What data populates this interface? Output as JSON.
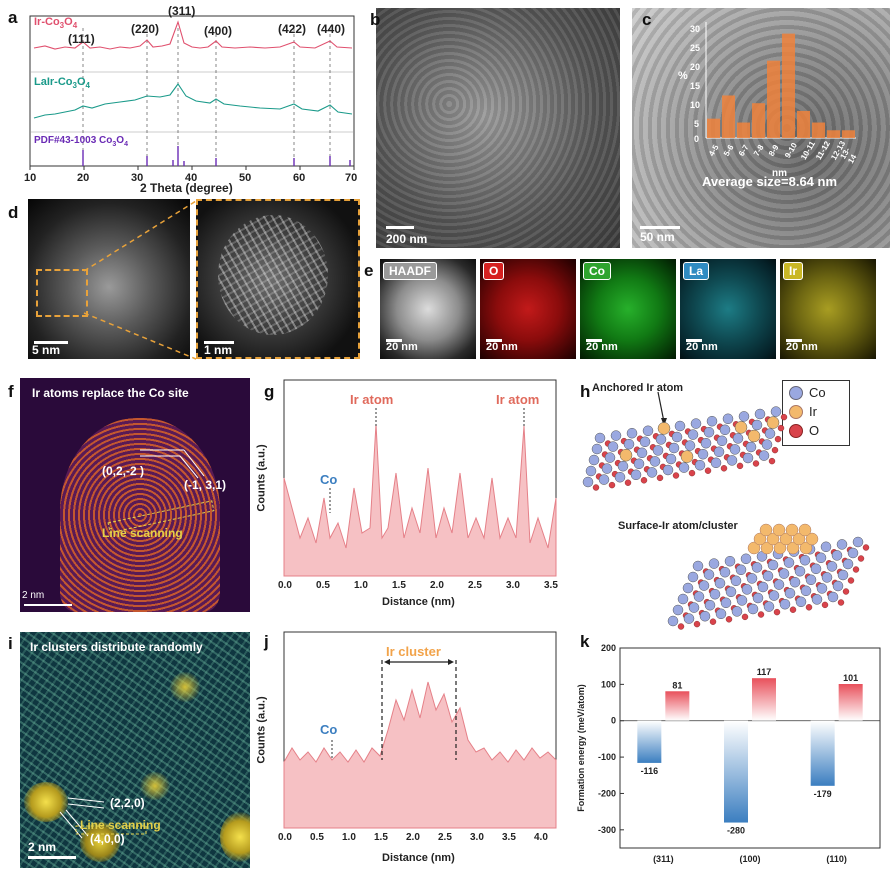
{
  "panels": {
    "a": {
      "label": "a",
      "series_top": "Ir-Co",
      "series_top_sub3": "3",
      "series_top_o": "O",
      "series_top_sub4": "4",
      "series_mid": "LaIr-Co",
      "series_mid_sub3": "3",
      "series_mid_o": "O",
      "series_mid_sub4": "4",
      "series_ref": "PDF#43-1003 Co",
      "series_ref_sub3": "3",
      "series_ref_o": "O",
      "series_ref_sub4": "4",
      "peaks": [
        "(111)",
        "(220)",
        "(311)",
        "(400)",
        "(422)",
        "(440)"
      ],
      "xlabel": "2 Theta (degree)",
      "xticks": [
        "10",
        "20",
        "30",
        "40",
        "50",
        "60",
        "70"
      ],
      "colors": {
        "top": "#e0506e",
        "mid": "#1a9a8a",
        "ref": "#6a2bb5"
      }
    },
    "b": {
      "label": "b",
      "scale": "200 nm"
    },
    "c": {
      "label": "c",
      "scale": "50 nm",
      "inset_ylabel": "%",
      "inset_xlabel": "nm",
      "inset_yticks": [
        "0",
        "5",
        "10",
        "15",
        "20",
        "25",
        "30"
      ],
      "caption": "Average size=8.64 nm",
      "bins": [
        "4-5",
        "5-6",
        "6-7",
        "7-8",
        "8-9",
        "9-10",
        "10-11",
        "11-12",
        "12-13",
        "13-14"
      ]
    },
    "d": {
      "label": "d",
      "scale_left": "5 nm",
      "scale_right": "1 nm"
    },
    "e": {
      "label": "e",
      "maps": [
        {
          "tag": "HAADF",
          "scale": "20 nm"
        },
        {
          "tag": "O",
          "scale": "20 nm"
        },
        {
          "tag": "Co",
          "scale": "20 nm"
        },
        {
          "tag": "La",
          "scale": "20 nm"
        },
        {
          "tag": "Ir",
          "scale": "20 nm"
        }
      ]
    },
    "f": {
      "label": "f",
      "title": "Ir atoms replace the Co site",
      "plane1": "(0,2,-2 )",
      "plane2": "(-1, 3,1)",
      "scan": "Line scanning",
      "scale": "2 nm"
    },
    "g": {
      "label": "g",
      "co": "Co",
      "ir1": "Ir atom",
      "ir2": "Ir atom",
      "ylabel": "Counts (a.u.)",
      "xlabel": "Distance (nm)",
      "xticks": [
        "0.0",
        "0.5",
        "1.0",
        "1.5",
        "2.0",
        "2.5",
        "3.0",
        "3.5"
      ]
    },
    "h": {
      "label": "h",
      "anchored": "Anchored Ir atom",
      "surface": "Surface-Ir atom/cluster",
      "legend": [
        {
          "name": "Co",
          "color": "#9aa8e0"
        },
        {
          "name": "Ir",
          "color": "#f3b96c"
        },
        {
          "name": "O",
          "color": "#d9434b"
        }
      ]
    },
    "i": {
      "label": "i",
      "title": "Ir clusters distribute randomly",
      "plane1": "(2,2,0)",
      "plane2": "(4,0,0)",
      "scan": "Line scanning",
      "scale": "2 nm"
    },
    "j": {
      "label": "j",
      "co": "Co",
      "cluster": "Ir cluster",
      "ylabel": "Counts (a.u.)",
      "xlabel": "Distance (nm)",
      "xticks": [
        "0.0",
        "0.5",
        "1.0",
        "1.5",
        "2.0",
        "2.5",
        "3.0",
        "3.5",
        "4.0"
      ]
    },
    "k": {
      "label": "k"
    }
  },
  "chart_data": [
    {
      "type": "bar",
      "panel": "c-inset",
      "categories": [
        "4-5",
        "5-6",
        "6-7",
        "7-8",
        "8-9",
        "9-10",
        "10-11",
        "11-12",
        "12-13",
        "13-14"
      ],
      "values": [
        5,
        11,
        4,
        9,
        20,
        27,
        7,
        4,
        2,
        2
      ],
      "ylabel": "%",
      "xlabel": "nm",
      "ylim": [
        0,
        30
      ]
    },
    {
      "type": "bar",
      "panel": "k",
      "categories": [
        "(311)",
        "(100)",
        "(110)"
      ],
      "series": [
        {
          "values": [
            -116,
            -280,
            -179
          ],
          "color": "#3b7ec0"
        },
        {
          "values": [
            81,
            117,
            101
          ],
          "color": "#e8505b"
        }
      ],
      "ylabel": "Formation energy (meV/atom)",
      "ylim": [
        -350,
        200
      ],
      "yticks": [
        -300,
        -200,
        -100,
        0,
        100,
        200
      ]
    }
  ]
}
